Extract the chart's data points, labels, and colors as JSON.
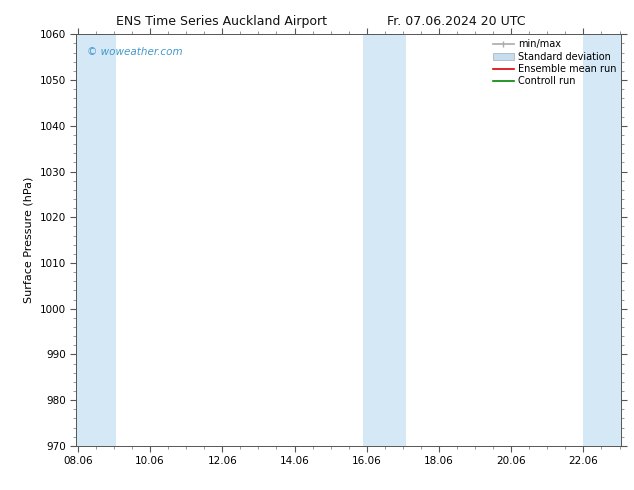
{
  "title_left": "ENS Time Series Auckland Airport",
  "title_right": "Fr. 07.06.2024 20 UTC",
  "ylabel": "Surface Pressure (hPa)",
  "ylim": [
    970,
    1060
  ],
  "yticks": [
    970,
    980,
    990,
    1000,
    1010,
    1020,
    1030,
    1040,
    1050,
    1060
  ],
  "xtick_labels": [
    "08.06",
    "10.06",
    "12.06",
    "14.06",
    "16.06",
    "18.06",
    "20.06",
    "22.06"
  ],
  "xtick_positions": [
    0,
    2,
    4,
    6,
    8,
    10,
    12,
    14
  ],
  "background_color": "#ffffff",
  "shaded_bands": [
    {
      "x_start": -0.05,
      "x_end": 1.0,
      "color": "#d6e8f7"
    },
    {
      "x_start": 1.0,
      "x_end": 2.0,
      "color": "#d6e8f7"
    },
    {
      "x_start": 7.0,
      "x_end": 9.0,
      "color": "#d6e8f7"
    },
    {
      "x_start": 13.9,
      "x_end": 15.1,
      "color": "#d6e8f7"
    },
    {
      "x_start": 14.4,
      "x_end": 15.05,
      "color": "#d6e8f7"
    }
  ],
  "watermark_text": "© woweather.com",
  "watermark_color": "#4499cc",
  "legend_labels": [
    "min/max",
    "Standard deviation",
    "Ensemble mean run",
    "Controll run"
  ],
  "legend_colors_line": [
    "#999999",
    "#cc0000",
    "#009900"
  ],
  "legend_std_color": "#c5ddf0",
  "xlim": [
    -0.05,
    15.05
  ],
  "tick_fontsize": 7.5,
  "label_fontsize": 8,
  "title_fontsize": 9
}
